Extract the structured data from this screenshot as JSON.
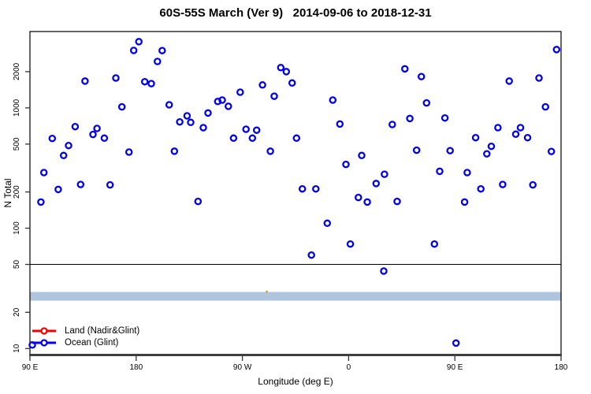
{
  "title": "60S-55S March (Ver 9)   2014-09-06 to 2018-12-31",
  "colors": {
    "land": "#EE0000",
    "ocean": "#0000EE",
    "band": "#B0C4DE",
    "axis": "#000000",
    "baseline": "#3F3F3F"
  },
  "legend": {
    "items": [
      {
        "label": "Land (Nadir&Glint)",
        "color": "#EE0000"
      },
      {
        "label": "Ocean (Glint)",
        "color": "#0000EE"
      }
    ]
  },
  "chart_data": {
    "type": "scatter",
    "title": "60S-55S March (Ver 9)   2014-09-06 to 2018-12-31",
    "xlabel": "Longitude (deg E)",
    "ylabel": "N Total",
    "grid": false,
    "legend_position": "bottom-left",
    "x_axis": {
      "note": "longitude unwrapped eastward from 90E; 90=90E, 180=180, 270=90W, 360=0, 450=90E, 540=180",
      "domain": [
        90,
        540
      ],
      "tick_values": [
        90,
        180,
        270,
        360,
        450,
        540
      ],
      "tick_labels": [
        "90 E",
        "180",
        "90 W",
        "0",
        "90 E",
        "180"
      ]
    },
    "y_axis": {
      "scale": "log",
      "domain": [
        8.9,
        4310
      ],
      "tick_values": [
        10,
        20,
        50,
        100,
        200,
        500,
        1000,
        2000
      ],
      "tick_labels": [
        "10",
        "20",
        "50",
        "100",
        "200",
        "500",
        "1000",
        "2000"
      ]
    },
    "reference_line": {
      "value": 50,
      "color": "#000000"
    },
    "band": {
      "from": 25,
      "to": 29.5,
      "color": "#B0C4DE"
    },
    "series": [
      {
        "name": "Land (Nadir&Glint)",
        "color": "#EE0000",
        "marker": "open-circle",
        "points": []
      },
      {
        "name": "Ocean (Glint)",
        "color": "#0000EE",
        "marker": "open-circle",
        "points": [
          [
            182.3,
            3550
          ],
          [
            177.9,
            3000
          ],
          [
            202.0,
            2990
          ],
          [
            198.0,
            2430
          ],
          [
            136.7,
            1670
          ],
          [
            162.8,
            1770
          ],
          [
            187.3,
            1650
          ],
          [
            192.8,
            1590
          ],
          [
            167.9,
            1020
          ],
          [
            208.0,
            1060
          ],
          [
            216.9,
            764
          ],
          [
            223.1,
            859
          ],
          [
            226.2,
            757
          ],
          [
            236.9,
            685
          ],
          [
            240.9,
            906
          ],
          [
            128.3,
            698
          ],
          [
            146.8,
            674
          ],
          [
            143.4,
            601
          ],
          [
            153.0,
            560
          ],
          [
            108.9,
            557
          ],
          [
            122.7,
            486
          ],
          [
            118.5,
            402
          ],
          [
            173.9,
            429
          ],
          [
            212.4,
            436
          ],
          [
            101.8,
            290
          ],
          [
            132.9,
            231
          ],
          [
            114.0,
            210
          ],
          [
            157.9,
            229
          ],
          [
            302.5,
            2160
          ],
          [
            307.2,
            2000
          ],
          [
            312.1,
            1610
          ],
          [
            287.0,
            1550
          ],
          [
            268.1,
            1350
          ],
          [
            297.0,
            1250
          ],
          [
            249.1,
            1130
          ],
          [
            252.9,
            1160
          ],
          [
            258.1,
            1030
          ],
          [
            346.6,
            1160
          ],
          [
            352.6,
            734
          ],
          [
            273.1,
            664
          ],
          [
            282.1,
            652
          ],
          [
            262.5,
            560
          ],
          [
            278.5,
            560
          ],
          [
            315.9,
            560
          ],
          [
            293.7,
            436
          ],
          [
            371.1,
            402
          ],
          [
            357.7,
            339
          ],
          [
            390.4,
            281
          ],
          [
            383.3,
            235
          ],
          [
            320.8,
            212
          ],
          [
            332.2,
            212
          ],
          [
            368.3,
            180
          ],
          [
            375.8,
            165
          ],
          [
            536.2,
            3050
          ],
          [
            407.7,
            2110
          ],
          [
            421.6,
            1820
          ],
          [
            496.1,
            1670
          ],
          [
            521.3,
            1770
          ],
          [
            426.0,
            1100
          ],
          [
            526.8,
            1020
          ],
          [
            411.9,
            816
          ],
          [
            397.0,
            727
          ],
          [
            441.6,
            824
          ],
          [
            486.5,
            685
          ],
          [
            505.6,
            685
          ],
          [
            501.6,
            604
          ],
          [
            511.6,
            565
          ],
          [
            467.6,
            565
          ],
          [
            480.9,
            479
          ],
          [
            477.1,
            415
          ],
          [
            417.6,
            445
          ],
          [
            446.0,
            441
          ],
          [
            531.8,
            434
          ],
          [
            437.2,
            297
          ],
          [
            460.5,
            290
          ],
          [
            472.0,
            212
          ],
          [
            490.5,
            231
          ],
          [
            516.1,
            229
          ],
          [
            99.3,
            165
          ],
          [
            232.4,
            167
          ],
          [
            92.0,
            10.7
          ],
          [
            341.9,
            110
          ],
          [
            361.5,
            73.8
          ],
          [
            328.5,
            59.8
          ],
          [
            389.8,
            44.0
          ],
          [
            401.1,
            167
          ],
          [
            458.3,
            165
          ],
          [
            432.7,
            73.8
          ],
          [
            451.0,
            11.1
          ]
        ]
      }
    ],
    "annotations": [
      {
        "type": "speck",
        "lon": 290.6,
        "value": 29.6,
        "color": "#E2A13C"
      }
    ]
  }
}
